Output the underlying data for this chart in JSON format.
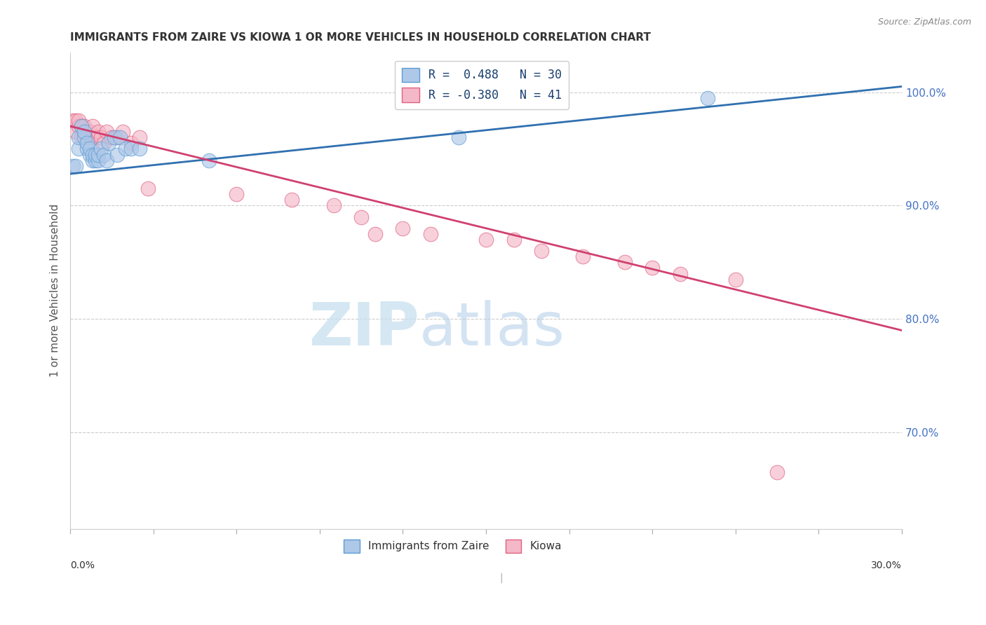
{
  "title": "IMMIGRANTS FROM ZAIRE VS KIOWA 1 OR MORE VEHICLES IN HOUSEHOLD CORRELATION CHART",
  "source": "Source: ZipAtlas.com",
  "ylabel": "1 or more Vehicles in Household",
  "ytick_labels": [
    "100.0%",
    "90.0%",
    "80.0%",
    "70.0%"
  ],
  "ytick_values": [
    1.0,
    0.9,
    0.8,
    0.7
  ],
  "xmin": 0.0,
  "xmax": 0.3,
  "ymin": 0.615,
  "ymax": 1.035,
  "legend_blue_label": "R =  0.488   N = 30",
  "legend_pink_label": "R = -0.380   N = 41",
  "blue_color": "#aec8e8",
  "pink_color": "#f4b8c8",
  "blue_edge_color": "#5b9bd5",
  "pink_edge_color": "#e06080",
  "blue_line_color": "#3070b0",
  "pink_line_color": "#d04070",
  "watermark_zip": "ZIP",
  "watermark_atlas": "atlas",
  "dot_size": 220,
  "blue_scatter_x": [
    0.001,
    0.002,
    0.003,
    0.003,
    0.004,
    0.005,
    0.005,
    0.006,
    0.006,
    0.007,
    0.007,
    0.008,
    0.008,
    0.009,
    0.009,
    0.01,
    0.01,
    0.011,
    0.012,
    0.013,
    0.014,
    0.016,
    0.017,
    0.018,
    0.02,
    0.022,
    0.025,
    0.05,
    0.14,
    0.23
  ],
  "blue_scatter_y": [
    0.935,
    0.935,
    0.95,
    0.96,
    0.97,
    0.96,
    0.965,
    0.95,
    0.955,
    0.945,
    0.95,
    0.94,
    0.945,
    0.94,
    0.945,
    0.94,
    0.945,
    0.95,
    0.945,
    0.94,
    0.955,
    0.96,
    0.945,
    0.96,
    0.95,
    0.95,
    0.95,
    0.94,
    0.96,
    0.995
  ],
  "pink_scatter_x": [
    0.001,
    0.002,
    0.002,
    0.003,
    0.003,
    0.004,
    0.004,
    0.005,
    0.005,
    0.006,
    0.007,
    0.008,
    0.008,
    0.009,
    0.01,
    0.01,
    0.011,
    0.012,
    0.013,
    0.015,
    0.017,
    0.019,
    0.022,
    0.025,
    0.028,
    0.06,
    0.08,
    0.095,
    0.105,
    0.11,
    0.12,
    0.13,
    0.15,
    0.16,
    0.17,
    0.185,
    0.2,
    0.21,
    0.22,
    0.24,
    0.255
  ],
  "pink_scatter_y": [
    0.975,
    0.965,
    0.975,
    0.97,
    0.975,
    0.96,
    0.97,
    0.965,
    0.97,
    0.96,
    0.965,
    0.96,
    0.97,
    0.96,
    0.96,
    0.965,
    0.96,
    0.955,
    0.965,
    0.96,
    0.96,
    0.965,
    0.955,
    0.96,
    0.915,
    0.91,
    0.905,
    0.9,
    0.89,
    0.875,
    0.88,
    0.875,
    0.87,
    0.87,
    0.86,
    0.855,
    0.85,
    0.845,
    0.84,
    0.835,
    0.665
  ],
  "blue_line_x0": 0.0,
  "blue_line_x1": 0.3,
  "blue_line_y0": 0.928,
  "blue_line_y1": 1.005,
  "pink_line_x0": 0.0,
  "pink_line_x1": 0.3,
  "pink_line_y0": 0.97,
  "pink_line_y1": 0.79
}
